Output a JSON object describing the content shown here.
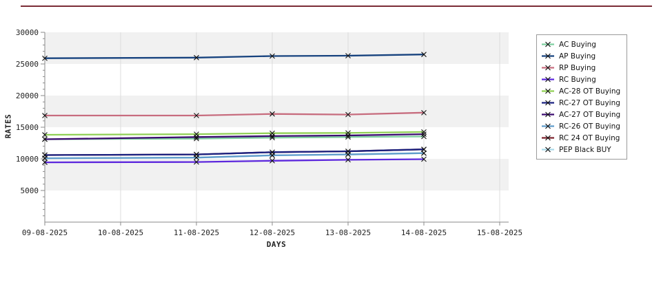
{
  "page": {
    "background": "#ffffff",
    "top_rule_color": "#7a2b35"
  },
  "chart_data": {
    "type": "line",
    "title": "",
    "xlabel": "DAYS",
    "ylabel": "RATES",
    "x_tick_labels": [
      "09-08-2025",
      "10-08-2025",
      "11-08-2025",
      "12-08-2025",
      "13-08-2025",
      "14-08-2025",
      "15-08-2025"
    ],
    "y_ticks": [
      5000,
      10000,
      15000,
      20000,
      25000,
      30000
    ],
    "ylim": [
      0,
      30000
    ],
    "grid": "vertical gridline per date; horizontal alternating 5000-unit shaded bands",
    "band_color": "#f1f1f1",
    "gridline_color": "#dcdcdc",
    "axis_color": "#8a8a8a",
    "tick_label_color": "#222222",
    "legend_position": "top-right",
    "marker": "x",
    "marker_color": "#111111",
    "x_data_labels": [
      "09-08-2025",
      "11-08-2025",
      "12-08-2025",
      "13-08-2025",
      "14-08-2025"
    ],
    "x_data_indices": [
      0,
      2,
      3,
      4,
      5
    ],
    "draw_order": [
      8,
      9,
      0,
      1,
      2,
      3,
      4,
      5,
      6,
      7
    ],
    "series": [
      {
        "name": "AC Buying",
        "color": "#7ecfa0",
        "values": [
          13100,
          13200,
          13350,
          13450,
          13530
        ]
      },
      {
        "name": "AP Buying",
        "color": "#16427e",
        "values": [
          25900,
          26000,
          26250,
          26300,
          26500
        ]
      },
      {
        "name": "RP Buying",
        "color": "#c76c7e",
        "values": [
          16850,
          16850,
          17100,
          17000,
          17300
        ]
      },
      {
        "name": "RC Buying",
        "color": "#5c27dd",
        "values": [
          9450,
          9500,
          9700,
          9850,
          9950
        ]
      },
      {
        "name": "AC-28 OT Buying",
        "color": "#90d055",
        "values": [
          13800,
          13900,
          14050,
          14100,
          14250
        ]
      },
      {
        "name": "RC-27 OT Buying",
        "color": "#1a2180",
        "values": [
          10600,
          10700,
          11050,
          11200,
          11500
        ]
      },
      {
        "name": "AC-27 OT Buying",
        "color": "#3b0b70",
        "values": [
          13100,
          13450,
          13600,
          13700,
          13900
        ]
      },
      {
        "name": "RC-26 OT Buying",
        "color": "#5f9ccb",
        "values": [
          10100,
          10200,
          10550,
          10700,
          10900
        ]
      },
      {
        "name": "RC 24 OT Buying",
        "color": "#7c222c",
        "values": [
          10600,
          10700,
          11050,
          11200,
          11500
        ]
      },
      {
        "name": "PEP Black BUY",
        "color": "#a9d9ea",
        "values": [
          10100,
          10200,
          10550,
          10700,
          10900
        ]
      }
    ]
  }
}
